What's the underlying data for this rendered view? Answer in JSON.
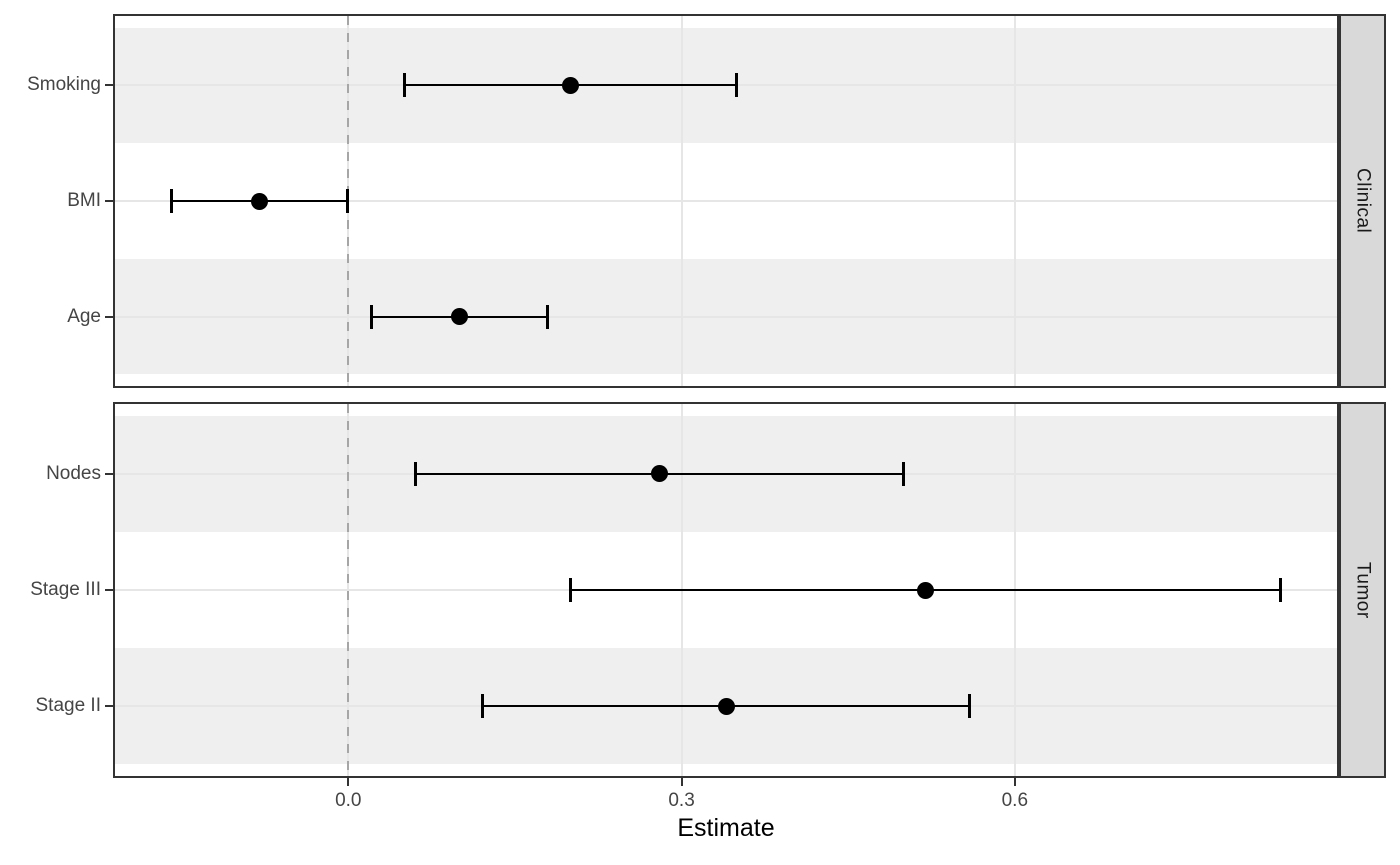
{
  "chart_data": {
    "type": "scatter",
    "subtype": "forest-plot-with-error-bars",
    "title": "",
    "xlabel": "Estimate",
    "ylabel": "",
    "x_ticks": [
      0.0,
      0.3,
      0.6
    ],
    "x_tick_labels": [
      "0.0",
      "0.3",
      "0.6"
    ],
    "xlim": [
      -0.21,
      0.89
    ],
    "refline_x": 0,
    "grid": "on",
    "legend": "none",
    "row_banding": "alternate rows shaded (first and third row of each facet)",
    "facets": [
      {
        "label": "Clinical",
        "rows": [
          {
            "label": "Smoking",
            "estimate": 0.2,
            "ci_low": 0.05,
            "ci_high": 0.35
          },
          {
            "label": "BMI",
            "estimate": -0.08,
            "ci_low": -0.16,
            "ci_high": 0.0
          },
          {
            "label": "Age",
            "estimate": 0.1,
            "ci_low": 0.02,
            "ci_high": 0.18
          }
        ]
      },
      {
        "label": "Tumor",
        "rows": [
          {
            "label": "Nodes",
            "estimate": 0.28,
            "ci_low": 0.06,
            "ci_high": 0.5
          },
          {
            "label": "Stage III",
            "estimate": 0.52,
            "ci_low": 0.2,
            "ci_high": 0.84
          },
          {
            "label": "Stage II",
            "estimate": 0.34,
            "ci_low": 0.12,
            "ci_high": 0.56
          }
        ]
      }
    ],
    "colors": {
      "point_and_line": "#000000",
      "band_fill": "#EFEFEF",
      "gridline": "#E6E6E6",
      "panel_border": "#333333",
      "strip_fill": "#D9D9D9",
      "strip_text": "#1A1A1A",
      "axis_text": "#454545",
      "axis_title": "#000000",
      "refline": "#A6A6A6",
      "background": "#FFFFFF"
    }
  }
}
